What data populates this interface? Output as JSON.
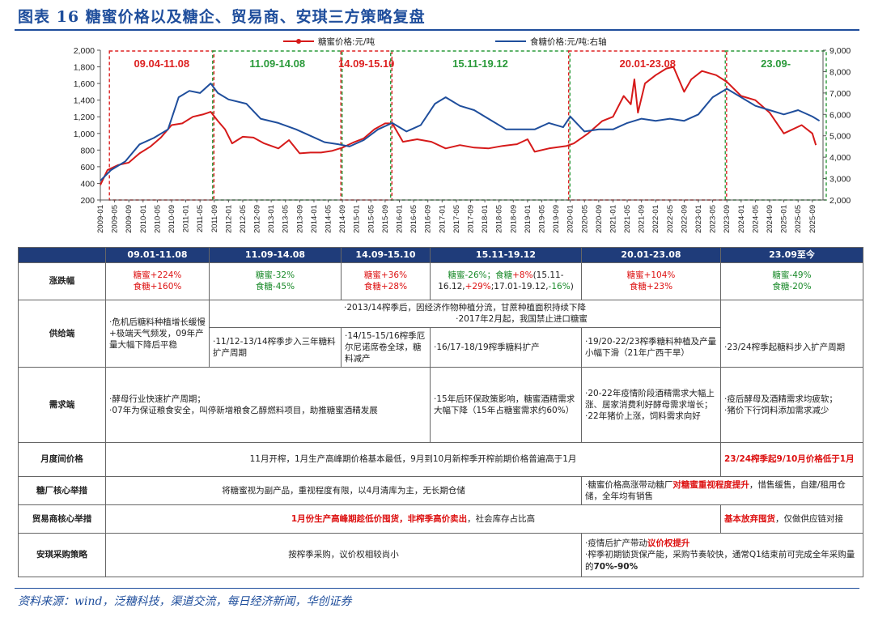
{
  "title": "图表 16  糖蜜价格以及糖企、贸易商、安琪三方策略复盘",
  "source": "资料来源：wind，泛糖科技，渠道交流，每日经济新闻，华创证券",
  "chart_data": {
    "type": "line",
    "legend": [
      "糖蜜价格:元/吨",
      "食糖价格:元/吨:右轴"
    ],
    "legend_placement": "top-center",
    "y_left": {
      "min": 200,
      "max": 2000,
      "ticks": [
        "200",
        "400",
        "600",
        "800",
        "1,000",
        "1,200",
        "1,400",
        "1,600",
        "1,800",
        "2,000"
      ]
    },
    "y_right": {
      "min": 2000,
      "max": 9000,
      "ticks": [
        "2,000",
        "3,000",
        "4,000",
        "5,000",
        "6,000",
        "7,000",
        "8,000",
        "9,000"
      ]
    },
    "x_start": "2009-01",
    "x_end": "2025-12",
    "x_ticks": [
      "2009-01",
      "2009-05",
      "2009-09",
      "2010-01",
      "2010-05",
      "2010-09",
      "2011-01",
      "2011-05",
      "2011-09",
      "2012-01",
      "2012-05",
      "2012-09",
      "2013-01",
      "2013-05",
      "2013-09",
      "2014-01",
      "2014-05",
      "2014-09",
      "2015-01",
      "2015-05",
      "2015-09",
      "2016-01",
      "2016-05",
      "2016-09",
      "2017-01",
      "2017-05",
      "2017-09",
      "2018-01",
      "2018-05",
      "2018-09",
      "2019-01",
      "2019-05",
      "2019-09",
      "2020-01",
      "2020-05",
      "2020-09",
      "2021-01",
      "2021-05",
      "2021-09",
      "2022-01",
      "2022-05",
      "2022-09",
      "2023-01",
      "2023-05",
      "2023-09",
      "2024-01",
      "2024-05",
      "2024-09",
      "2025-01",
      "2025-05",
      "2025-09"
    ],
    "periods": [
      {
        "label": "09.04-11.08",
        "start": "2009-04",
        "end": "2011-08",
        "color": "#d22"
      },
      {
        "label": "11.09-14.08",
        "start": "2011-09",
        "end": "2014-08",
        "color": "#2a9a3a"
      },
      {
        "label": "14.09-15.10",
        "start": "2014-09",
        "end": "2015-10",
        "color": "#d22"
      },
      {
        "label": "15.11-19.12",
        "start": "2015-11",
        "end": "2019-12",
        "color": "#2a9a3a"
      },
      {
        "label": "20.01-23.08",
        "start": "2020-01",
        "end": "2023-08",
        "color": "#d22"
      },
      {
        "label": "23.09-",
        "start": "2023-09",
        "end": "2025-12",
        "color": "#2a9a3a"
      }
    ],
    "series": [
      {
        "name": "糖蜜价格:元/吨",
        "axis": "left",
        "color": "#d61a1a",
        "points": [
          [
            "2009-01",
            380
          ],
          [
            "2009-03",
            560
          ],
          [
            "2009-06",
            620
          ],
          [
            "2009-09",
            650
          ],
          [
            "2009-12",
            760
          ],
          [
            "2010-03",
            840
          ],
          [
            "2010-06",
            950
          ],
          [
            "2010-09",
            1100
          ],
          [
            "2010-12",
            1120
          ],
          [
            "2011-03",
            1200
          ],
          [
            "2011-06",
            1230
          ],
          [
            "2011-08",
            1260
          ],
          [
            "2011-10",
            1150
          ],
          [
            "2011-12",
            1050
          ],
          [
            "2012-02",
            880
          ],
          [
            "2012-05",
            960
          ],
          [
            "2012-08",
            950
          ],
          [
            "2012-11",
            880
          ],
          [
            "2013-03",
            820
          ],
          [
            "2013-06",
            920
          ],
          [
            "2013-09",
            760
          ],
          [
            "2013-12",
            770
          ],
          [
            "2014-03",
            770
          ],
          [
            "2014-06",
            790
          ],
          [
            "2014-09",
            830
          ],
          [
            "2014-12",
            890
          ],
          [
            "2015-03",
            940
          ],
          [
            "2015-06",
            1050
          ],
          [
            "2015-09",
            1120
          ],
          [
            "2015-11",
            1120
          ],
          [
            "2016-02",
            900
          ],
          [
            "2016-06",
            930
          ],
          [
            "2016-10",
            900
          ],
          [
            "2017-02",
            820
          ],
          [
            "2017-06",
            860
          ],
          [
            "2017-10",
            830
          ],
          [
            "2018-02",
            820
          ],
          [
            "2018-06",
            850
          ],
          [
            "2018-10",
            870
          ],
          [
            "2019-01",
            930
          ],
          [
            "2019-03",
            780
          ],
          [
            "2019-07",
            820
          ],
          [
            "2019-12",
            850
          ],
          [
            "2020-02",
            880
          ],
          [
            "2020-06",
            1000
          ],
          [
            "2020-10",
            1150
          ],
          [
            "2021-01",
            1200
          ],
          [
            "2021-04",
            1450
          ],
          [
            "2021-06",
            1350
          ],
          [
            "2021-07",
            1650
          ],
          [
            "2021-08",
            1250
          ],
          [
            "2021-10",
            1600
          ],
          [
            "2022-01",
            1700
          ],
          [
            "2022-04",
            1780
          ],
          [
            "2022-06",
            1800
          ],
          [
            "2022-09",
            1500
          ],
          [
            "2022-11",
            1650
          ],
          [
            "2023-02",
            1750
          ],
          [
            "2023-06",
            1700
          ],
          [
            "2023-09",
            1620
          ],
          [
            "2024-01",
            1450
          ],
          [
            "2024-05",
            1400
          ],
          [
            "2024-09",
            1250
          ],
          [
            "2025-01",
            1000
          ],
          [
            "2025-06",
            1100
          ],
          [
            "2025-09",
            1000
          ],
          [
            "2025-10",
            860
          ]
        ]
      },
      {
        "name": "食糖价格:元/吨:右轴",
        "axis": "right",
        "color": "#1f4e9c",
        "points": [
          [
            "2009-01",
            2900
          ],
          [
            "2009-04",
            3400
          ],
          [
            "2009-08",
            3800
          ],
          [
            "2009-12",
            4600
          ],
          [
            "2010-04",
            4900
          ],
          [
            "2010-08",
            5300
          ],
          [
            "2010-11",
            6800
          ],
          [
            "2011-02",
            7100
          ],
          [
            "2011-05",
            7000
          ],
          [
            "2011-08",
            7450
          ],
          [
            "2011-10",
            7000
          ],
          [
            "2012-01",
            6700
          ],
          [
            "2012-06",
            6500
          ],
          [
            "2012-10",
            5800
          ],
          [
            "2013-03",
            5600
          ],
          [
            "2013-08",
            5300
          ],
          [
            "2013-12",
            5000
          ],
          [
            "2014-04",
            4700
          ],
          [
            "2014-08",
            4600
          ],
          [
            "2014-11",
            4500
          ],
          [
            "2015-03",
            4800
          ],
          [
            "2015-07",
            5300
          ],
          [
            "2015-11",
            5600
          ],
          [
            "2016-03",
            5200
          ],
          [
            "2016-07",
            5500
          ],
          [
            "2016-11",
            6500
          ],
          [
            "2017-02",
            6800
          ],
          [
            "2017-06",
            6400
          ],
          [
            "2017-10",
            6200
          ],
          [
            "2018-02",
            5800
          ],
          [
            "2018-07",
            5300
          ],
          [
            "2018-11",
            5300
          ],
          [
            "2019-03",
            5300
          ],
          [
            "2019-07",
            5600
          ],
          [
            "2019-11",
            5400
          ],
          [
            "2020-01",
            5900
          ],
          [
            "2020-05",
            5200
          ],
          [
            "2020-09",
            5300
          ],
          [
            "2021-01",
            5300
          ],
          [
            "2021-05",
            5600
          ],
          [
            "2021-09",
            5800
          ],
          [
            "2022-01",
            5700
          ],
          [
            "2022-05",
            5800
          ],
          [
            "2022-09",
            5700
          ],
          [
            "2023-01",
            6000
          ],
          [
            "2023-05",
            6800
          ],
          [
            "2023-09",
            7200
          ],
          [
            "2024-01",
            6800
          ],
          [
            "2024-05",
            6400
          ],
          [
            "2024-09",
            6200
          ],
          [
            "2025-01",
            6000
          ],
          [
            "2025-05",
            6200
          ],
          [
            "2025-09",
            5900
          ],
          [
            "2025-11",
            5700
          ]
        ]
      }
    ]
  },
  "table": {
    "headers": [
      "",
      "09.01-11.08",
      "11.09-14.08",
      "14.09-15.10",
      "15.11-19.12",
      "20.01-23.08",
      "23.09至今"
    ],
    "rows": {
      "change": {
        "label": "涨跌幅",
        "c1a": "糖蜜+224%",
        "c1b": "食糖+160%",
        "c2a": "糖蜜-32%",
        "c2b": "食糖-45%",
        "c3a": "糖蜜+36%",
        "c3b": "食糖+28%",
        "c4a": "糖蜜-26%；食糖",
        "c4b": "+8%",
        "c4c": "(15.11-",
        "c4d": "16.12,",
        "c4e": "+29%",
        "c4f": ";17.01-19.12,",
        "c4g": "-16%",
        "c4h": ")",
        "c5a": "糖蜜+104%",
        "c5b": "食糖+23%",
        "c6a": "糖蜜-49%",
        "c6b": "食糖-20%"
      },
      "supply": {
        "label": "供给端",
        "c1": "·危机后糖料种植增长缓慢+极端天气频发，09年产量大幅下降后平稳",
        "top1": "·2013/14榨季后，因经济作物种植分流，甘蔗种植面积持续下降",
        "top2": "·2017年2月起，我国禁止进口糖蜜",
        "c2": "·11/12-13/14榨季步入三年糖料扩产周期",
        "c3": "·14/15-15/16榨季厄尔尼诺席卷全球，糖料减产",
        "c4": "·16/17-18/19榨季糖料扩产",
        "c5": "·19/20-22/23榨季糖料种植及产量小幅下滑（21年广西干旱）",
        "c6": "·23/24榨季起糖料步入扩产周期"
      },
      "demand": {
        "label": "需求端",
        "c1a": "·酵母行业快速扩产周期；",
        "c1b": "·07年为保证粮食安全，叫停新增粮食乙醇燃料项目，助推糖蜜酒精发展",
        "c2": "·15年后环保政策影响，糖蜜酒精需求大幅下降（15年占糖蜜需求约60%）",
        "c3a": "·20-22年疫情阶段酒精需求大幅上涨、居家消费利好酵母需求增长；",
        "c3b": "·22年猪价上涨，饲料需求向好",
        "c4a": "·疫后酵母及酒精需求均疲软；",
        "c4b": "·猪价下行饲料添加需求减少"
      },
      "monthly": {
        "label": "月度间价格",
        "c1": "11月开榨，1月生产高峰期价格基本最低，9月到10月新榨季开榨前期价格普遍高于1月",
        "c2": "23/24榨季起9/10月价格低于1月"
      },
      "mill": {
        "label": "糖厂核心举措",
        "c1": "将糖蜜视为副产品，重视程度有限，以4月清库为主，无长期仓储",
        "c2a": "·糖蜜价格高涨带动糖厂",
        "c2b": "对糖蜜重视程度提升",
        "c2c": "，惜售缓售，自建/租用仓储，全年均有销售"
      },
      "trader": {
        "label": "贸易商核心举措",
        "c1a": "1月份生产高峰期趁低价囤货，非榨季高价卖出",
        "c1b": "，社会库存占比高",
        "c2a": "基本放弃囤货",
        "c2b": "，仅做供应链对接"
      },
      "angel": {
        "label": "安琪采购策略",
        "c1": "按榨季采购，议价权相较尚小",
        "c2a": "·疫情后扩产带动",
        "c2b": "议价权提升",
        "c2c": "·榨季初期锁货保产能，采购节奏较快，通常Q1结束前可完成全年采购量的",
        "c2d": "70%-90%"
      }
    }
  }
}
